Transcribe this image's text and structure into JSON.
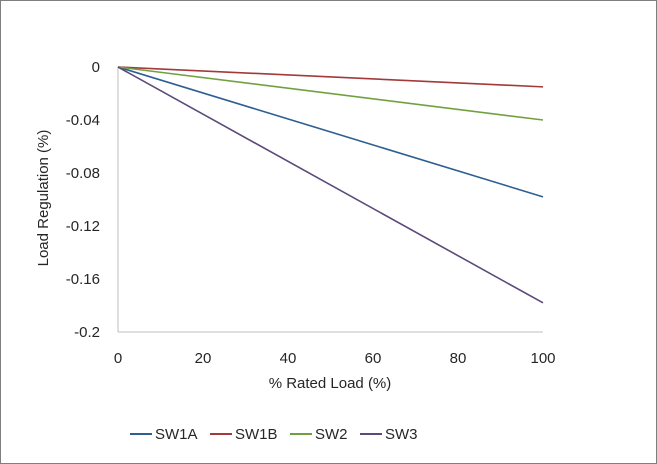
{
  "chart_data": {
    "type": "line",
    "title": "",
    "xlabel": "% Rated Load (%)",
    "ylabel": "Load Regulation (%)",
    "xlim": [
      0,
      100
    ],
    "ylim": [
      -0.2,
      0
    ],
    "x_ticks": [
      0,
      20,
      40,
      60,
      80,
      100
    ],
    "x_tick_labels": [
      "0",
      "20",
      "40",
      "60",
      "80",
      "100"
    ],
    "y_ticks": [
      0,
      -0.04,
      -0.08,
      -0.12,
      -0.16,
      -0.2
    ],
    "y_tick_labels": [
      "0",
      "-0.04",
      "-0.08",
      "-0.12",
      "-0.16",
      "-0.2"
    ],
    "grid": false,
    "legend_position": "bottom",
    "x": [
      0,
      100
    ],
    "series": [
      {
        "name": "SW1A",
        "color": "#2e5f92",
        "values": [
          0,
          -0.098
        ]
      },
      {
        "name": "SW1B",
        "color": "#a33a3a",
        "values": [
          0,
          -0.015
        ]
      },
      {
        "name": "SW2",
        "color": "#72a040",
        "values": [
          0,
          -0.04
        ]
      },
      {
        "name": "SW3",
        "color": "#5b4a7a",
        "values": [
          0,
          -0.178
        ]
      }
    ]
  }
}
